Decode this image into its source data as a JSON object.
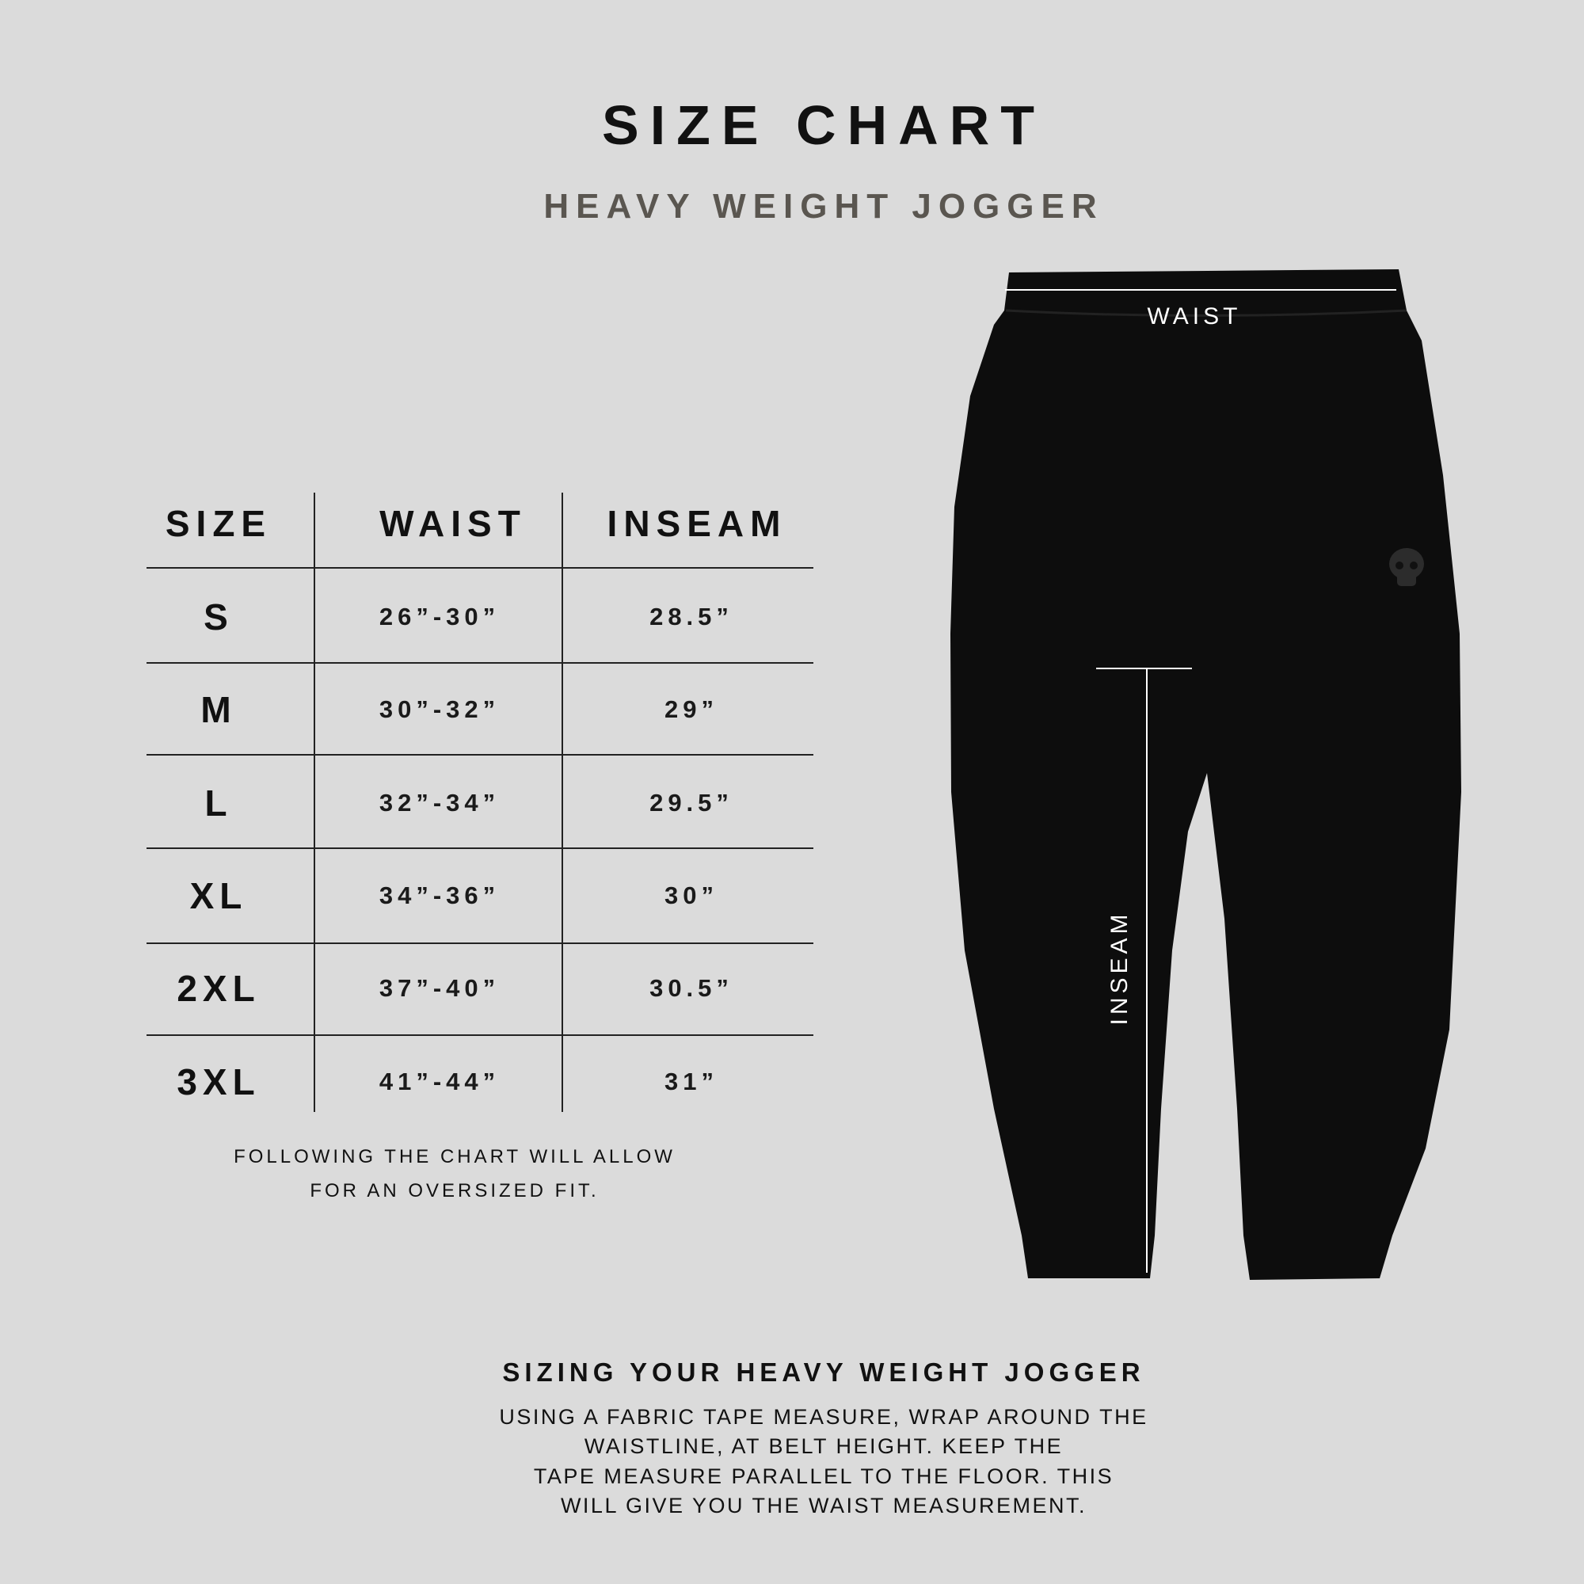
{
  "header": {
    "title": "SIZE CHART",
    "subtitle": "HEAVY WEIGHT JOGGER"
  },
  "table": {
    "columns": [
      "SIZE",
      "WAIST",
      "INSEAM"
    ],
    "rows": [
      {
        "size": "S",
        "waist": "26”-30”",
        "inseam": "28.5”"
      },
      {
        "size": "M",
        "waist": "30”-32”",
        "inseam": "29”"
      },
      {
        "size": "L",
        "waist": "32”-34”",
        "inseam": "29.5”"
      },
      {
        "size": "XL",
        "waist": "34”-36”",
        "inseam": "30”"
      },
      {
        "size": "2XL",
        "waist": "37”-40”",
        "inseam": "30.5”"
      },
      {
        "size": "3XL",
        "waist": "41”-44”",
        "inseam": "31”"
      }
    ]
  },
  "note": {
    "line1": "FOLLOWING THE CHART WILL ALLOW",
    "line2": "FOR AN OVERSIZED FIT."
  },
  "diagram": {
    "waist_label": "WAIST",
    "inseam_label": "INSEAM",
    "garment_color": "#0d0d0d",
    "logo_icon": "skull-icon"
  },
  "howto": {
    "title": "SIZING YOUR HEAVY WEIGHT JOGGER",
    "lines": [
      "USING A FABRIC TAPE MEASURE, WRAP AROUND THE",
      "WAISTLINE, AT BELT HEIGHT. KEEP THE",
      "TAPE MEASURE PARALLEL TO THE FLOOR. THIS",
      "WILL GIVE YOU THE WAIST MEASUREMENT."
    ]
  }
}
